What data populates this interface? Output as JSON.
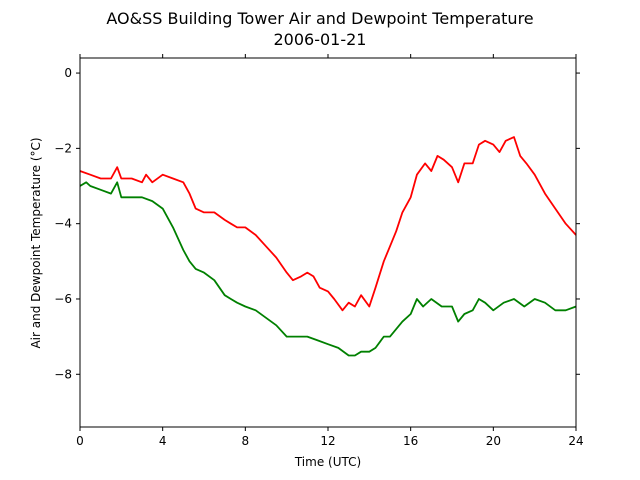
{
  "chart_data": {
    "type": "line",
    "title": "AO&SS Building Tower Air and Dewpoint Temperature",
    "subtitle": "2006-01-21",
    "xlabel": "Time (UTC)",
    "ylabel": "Air and Dewpoint Temperature (°C)",
    "xlim": [
      0,
      24
    ],
    "ylim": [
      -9.4,
      0.4
    ],
    "xticks": [
      0,
      4,
      8,
      12,
      16,
      20,
      24
    ],
    "yticks": [
      0,
      -2,
      -4,
      -6,
      -8
    ],
    "grid": false,
    "series": [
      {
        "color": "#ff0000",
        "x": [
          0,
          0.5,
          1,
          1.5,
          1.8,
          2,
          2.5,
          3,
          3.2,
          3.5,
          4,
          4.5,
          5,
          5.3,
          5.6,
          6,
          6.5,
          7,
          7.3,
          7.6,
          8,
          8.5,
          9,
          9.5,
          10,
          10.3,
          10.7,
          11,
          11.3,
          11.6,
          12,
          12.3,
          12.7,
          13,
          13.3,
          13.6,
          14,
          14.3,
          14.7,
          15,
          15.3,
          15.6,
          16,
          16.3,
          16.7,
          17,
          17.3,
          17.6,
          18,
          18.3,
          18.6,
          19,
          19.3,
          19.6,
          20,
          20.3,
          20.6,
          21,
          21.3,
          21.6,
          22,
          22.5,
          23,
          23.5,
          24
        ],
        "y": [
          -2.6,
          -2.7,
          -2.8,
          -2.8,
          -2.5,
          -2.8,
          -2.8,
          -2.9,
          -2.7,
          -2.9,
          -2.7,
          -2.8,
          -2.9,
          -3.2,
          -3.6,
          -3.7,
          -3.7,
          -3.9,
          -4.0,
          -4.1,
          -4.1,
          -4.3,
          -4.6,
          -4.9,
          -5.3,
          -5.5,
          -5.4,
          -5.3,
          -5.4,
          -5.7,
          -5.8,
          -6.0,
          -6.3,
          -6.1,
          -6.2,
          -5.9,
          -6.2,
          -5.7,
          -5.0,
          -4.6,
          -4.2,
          -3.7,
          -3.3,
          -2.7,
          -2.4,
          -2.6,
          -2.2,
          -2.3,
          -2.5,
          -2.9,
          -2.4,
          -2.4,
          -1.9,
          -1.8,
          -1.9,
          -2.1,
          -1.8,
          -1.7,
          -2.2,
          -2.4,
          -2.7,
          -3.2,
          -3.6,
          -4.0,
          -4.3
        ]
      },
      {
        "color": "#008000",
        "x": [
          0,
          0.3,
          0.5,
          1,
          1.5,
          1.8,
          2,
          2.5,
          3,
          3.5,
          4,
          4.5,
          5,
          5.3,
          5.6,
          6,
          6.5,
          7,
          7.3,
          7.6,
          8,
          8.5,
          9,
          9.5,
          10,
          10.5,
          11,
          11.5,
          12,
          12.5,
          13,
          13.3,
          13.6,
          14,
          14.3,
          14.7,
          15,
          15.3,
          15.6,
          16,
          16.3,
          16.6,
          17,
          17.5,
          18,
          18.3,
          18.6,
          19,
          19.3,
          19.6,
          20,
          20.5,
          21,
          21.5,
          22,
          22.5,
          23,
          23.5,
          24
        ],
        "y": [
          -3.0,
          -2.9,
          -3.0,
          -3.1,
          -3.2,
          -2.9,
          -3.3,
          -3.3,
          -3.3,
          -3.4,
          -3.6,
          -4.1,
          -4.7,
          -5.0,
          -5.2,
          -5.3,
          -5.5,
          -5.9,
          -6.0,
          -6.1,
          -6.2,
          -6.3,
          -6.5,
          -6.7,
          -7.0,
          -7.0,
          -7.0,
          -7.1,
          -7.2,
          -7.3,
          -7.5,
          -7.5,
          -7.4,
          -7.4,
          -7.3,
          -7.0,
          -7.0,
          -6.8,
          -6.6,
          -6.4,
          -6.0,
          -6.2,
          -6.0,
          -6.2,
          -6.2,
          -6.6,
          -6.4,
          -6.3,
          -6.0,
          -6.1,
          -6.3,
          -6.1,
          -6.0,
          -6.2,
          -6.0,
          -6.1,
          -6.3,
          -6.3,
          -6.2
        ]
      }
    ]
  }
}
